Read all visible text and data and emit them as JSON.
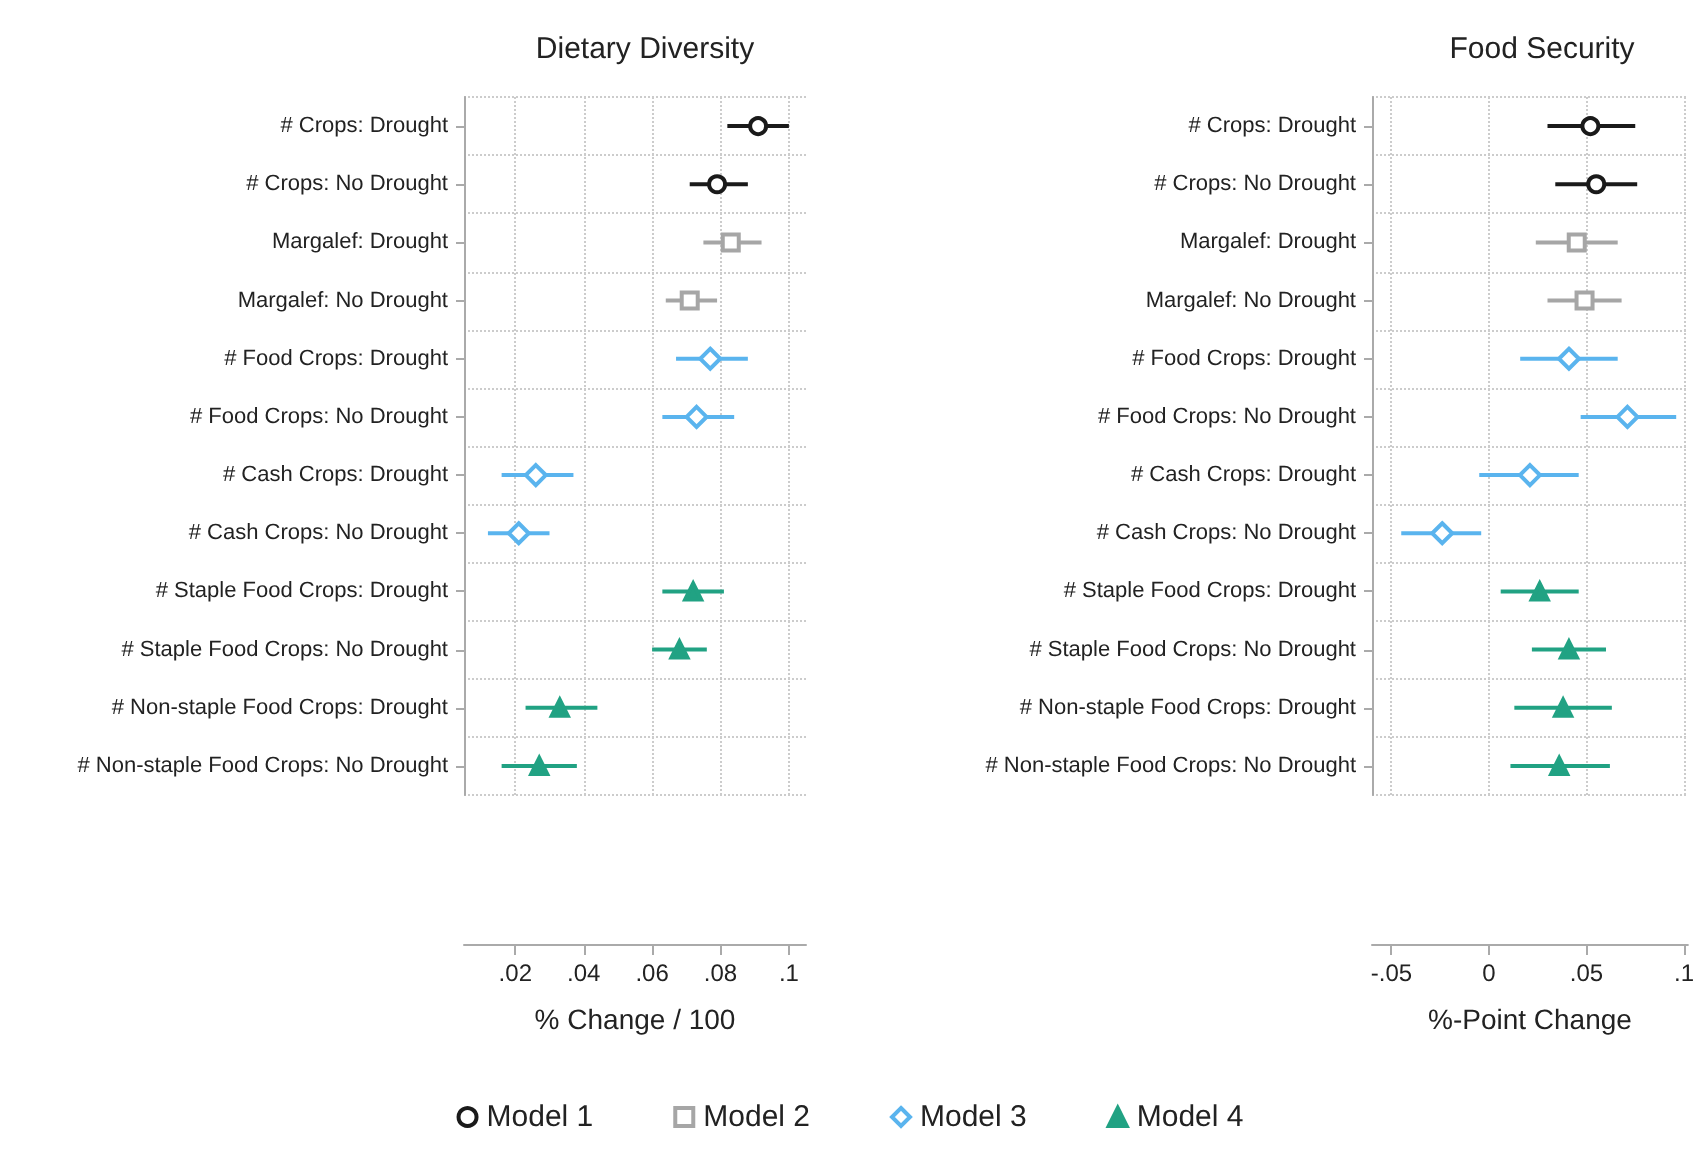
{
  "chart_data": [
    {
      "type": "scatter",
      "orientation": "horizontal",
      "title": "Dietary Diversity",
      "xlabel": "% Change / 100",
      "categories": [
        "# Crops: Drought",
        "# Crops: No Drought",
        "Margalef: Drought",
        "Margalef: No Drought",
        "# Food Crops: Drought",
        "# Food Crops: No Drought",
        "# Cash Crops: Drought",
        "# Cash Crops: No Drought",
        "# Staple Food Crops: Drought",
        "# Staple Food Crops: No Drought",
        "# Non-staple Food Crops: Drought",
        "# Non-staple Food Crops: No Drought"
      ],
      "series": [
        {
          "name": "Model 1",
          "color": "#1a1a1a",
          "marker": "circle",
          "values": [
            0.091,
            0.079,
            null,
            null,
            null,
            null,
            null,
            null,
            null,
            null,
            null,
            null
          ],
          "errors": [
            [
              0.082,
              0.1
            ],
            [
              0.071,
              0.088
            ],
            null,
            null,
            null,
            null,
            null,
            null,
            null,
            null,
            null,
            null
          ]
        },
        {
          "name": "Model 2",
          "color": "#a6a6a6",
          "marker": "square",
          "values": [
            null,
            null,
            0.083,
            0.071,
            null,
            null,
            null,
            null,
            null,
            null,
            null,
            null
          ],
          "errors": [
            null,
            null,
            [
              0.075,
              0.092
            ],
            [
              0.064,
              0.079
            ],
            null,
            null,
            null,
            null,
            null,
            null,
            null,
            null
          ]
        },
        {
          "name": "Model 3",
          "color": "#5ab4ee",
          "marker": "diamond",
          "values": [
            null,
            null,
            null,
            null,
            0.077,
            0.073,
            0.026,
            0.021,
            null,
            null,
            null,
            null
          ],
          "errors": [
            null,
            null,
            null,
            null,
            [
              0.067,
              0.088
            ],
            [
              0.063,
              0.084
            ],
            [
              0.016,
              0.037
            ],
            [
              0.012,
              0.03
            ],
            null,
            null,
            null,
            null
          ]
        },
        {
          "name": "Model 4",
          "color": "#21a283",
          "marker": "triangle",
          "values": [
            null,
            null,
            null,
            null,
            null,
            null,
            null,
            null,
            0.072,
            0.068,
            0.033,
            0.027
          ],
          "errors": [
            null,
            null,
            null,
            null,
            null,
            null,
            null,
            null,
            [
              0.063,
              0.081
            ],
            [
              0.06,
              0.076
            ],
            [
              0.023,
              0.044
            ],
            [
              0.016,
              0.038
            ]
          ]
        }
      ],
      "xlim": [
        0.005,
        0.105
      ],
      "xticks": [
        {
          "value": 0.02,
          "label": ".02"
        },
        {
          "value": 0.04,
          "label": ".04"
        },
        {
          "value": 0.06,
          "label": ".06"
        },
        {
          "value": 0.08,
          "label": ".08"
        },
        {
          "value": 0.1,
          "label": ".1"
        }
      ],
      "grid": true,
      "legend": "bottom"
    },
    {
      "type": "scatter",
      "orientation": "horizontal",
      "title": "Food Security",
      "xlabel": "%-Point Change",
      "categories": [
        "# Crops: Drought",
        "# Crops: No Drought",
        "Margalef: Drought",
        "Margalef: No Drought",
        "# Food Crops: Drought",
        "# Food Crops: No Drought",
        "# Cash Crops: Drought",
        "# Cash Crops: No Drought",
        "# Staple Food Crops: Drought",
        "# Staple Food Crops: No Drought",
        "# Non-staple Food Crops: Drought",
        "# Non-staple Food Crops: No Drought"
      ],
      "series": [
        {
          "color": "#1a1a1a",
          "marker": "circle",
          "values": [
            0.052,
            0.055,
            null,
            null,
            null,
            null,
            null,
            null,
            null,
            null,
            null,
            null
          ],
          "errors": [
            [
              0.03,
              0.075
            ],
            [
              0.034,
              0.076
            ],
            null,
            null,
            null,
            null,
            null,
            null,
            null,
            null,
            null,
            null
          ]
        },
        {
          "color": "#a6a6a6",
          "marker": "square",
          "values": [
            null,
            null,
            0.045,
            0.049,
            null,
            null,
            null,
            null,
            null,
            null,
            null,
            null
          ],
          "errors": [
            null,
            null,
            [
              0.024,
              0.066
            ],
            [
              0.03,
              0.068
            ],
            null,
            null,
            null,
            null,
            null,
            null,
            null,
            null
          ]
        },
        {
          "color": "#5ab4ee",
          "marker": "diamond",
          "values": [
            null,
            null,
            null,
            null,
            0.041,
            0.071,
            0.021,
            -0.024,
            null,
            null,
            null,
            null
          ],
          "errors": [
            null,
            null,
            null,
            null,
            [
              0.016,
              0.066
            ],
            [
              0.047,
              0.096
            ],
            [
              -0.005,
              0.046
            ],
            [
              -0.045,
              -0.004
            ],
            null,
            null,
            null,
            null
          ]
        },
        {
          "color": "#21a283",
          "marker": "triangle",
          "values": [
            null,
            null,
            null,
            null,
            null,
            null,
            null,
            null,
            0.026,
            0.041,
            0.038,
            0.036
          ],
          "errors": [
            null,
            null,
            null,
            null,
            null,
            null,
            null,
            null,
            [
              0.006,
              0.046
            ],
            [
              0.022,
              0.06
            ],
            [
              0.013,
              0.063
            ],
            [
              0.011,
              0.062
            ]
          ]
        }
      ],
      "xlim": [
        -0.06,
        0.102
      ],
      "xticks": [
        {
          "value": -0.05,
          "label": "-.05"
        },
        0,
        {
          "value": 0.05,
          "label": ".05"
        },
        {
          "value": 0.1,
          "label": ".1"
        }
      ],
      "grid": true
    }
  ]
}
